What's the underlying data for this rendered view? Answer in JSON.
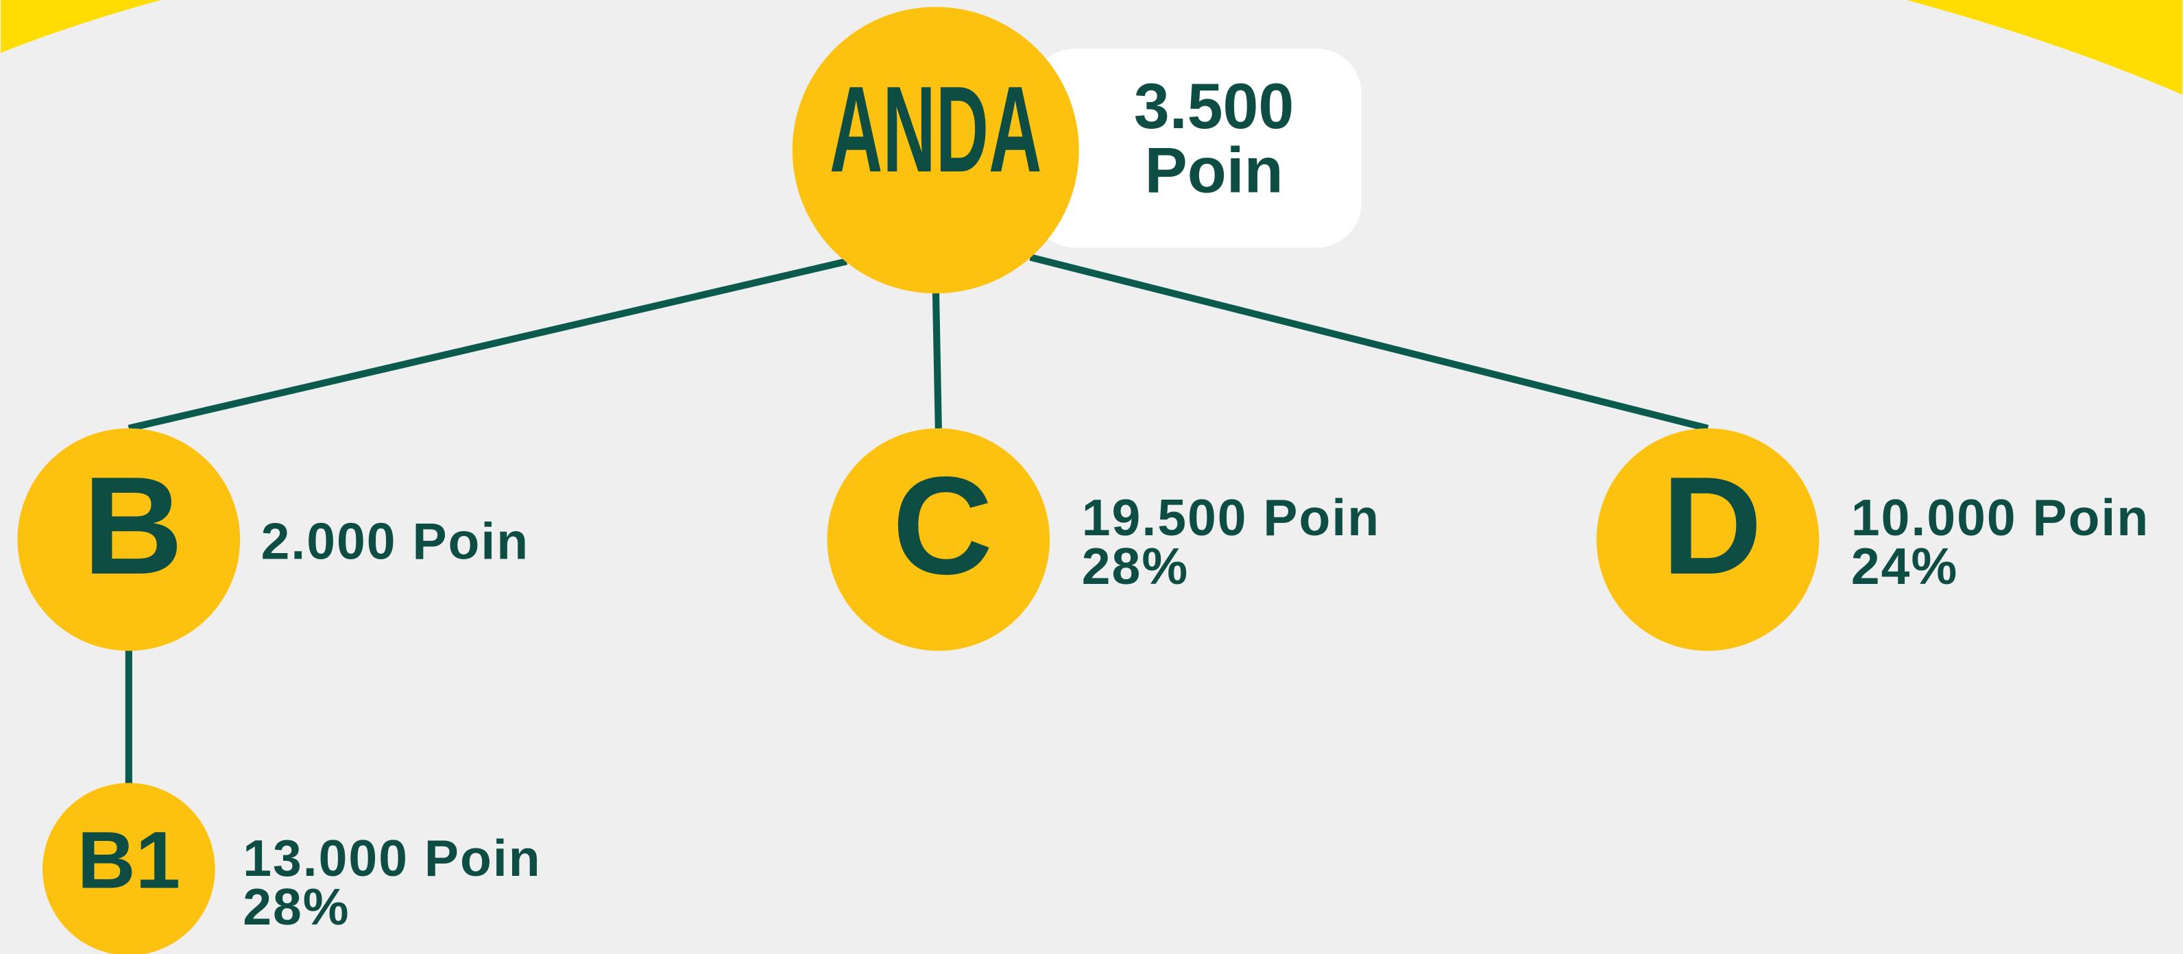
{
  "nodes": [
    {
      "label": "ANDA",
      "points": "3.500",
      "unit": "Poin"
    },
    {
      "label": "B",
      "points": "2.000 Poin"
    },
    {
      "label": "C",
      "points": "19.500 Poin",
      "percent": "28%"
    },
    {
      "label": "D",
      "points": "10.000 Poin",
      "percent": "24%"
    },
    {
      "label": "B1",
      "points": "13.000 Poin",
      "percent": "28%"
    }
  ]
}
